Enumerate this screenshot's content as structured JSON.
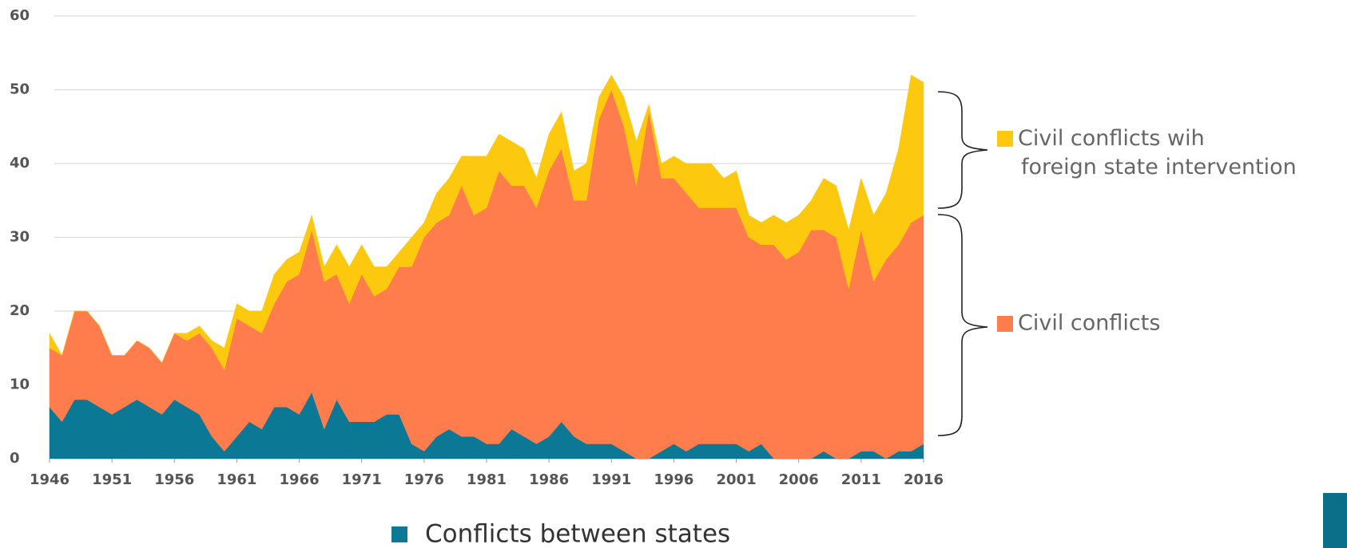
{
  "chart_data": {
    "type": "stacked-area",
    "x": [
      1946,
      1947,
      1948,
      1949,
      1950,
      1951,
      1952,
      1953,
      1954,
      1955,
      1956,
      1957,
      1958,
      1959,
      1960,
      1961,
      1962,
      1963,
      1964,
      1965,
      1966,
      1967,
      1968,
      1969,
      1970,
      1971,
      1972,
      1973,
      1974,
      1975,
      1976,
      1977,
      1978,
      1979,
      1980,
      1981,
      1982,
      1983,
      1984,
      1985,
      1986,
      1987,
      1988,
      1989,
      1990,
      1991,
      1992,
      1993,
      1994,
      1995,
      1996,
      1997,
      1998,
      1999,
      2000,
      2001,
      2002,
      2003,
      2004,
      2005,
      2006,
      2007,
      2008,
      2009,
      2010,
      2011,
      2012,
      2013,
      2014,
      2015,
      2016
    ],
    "series": [
      {
        "name": "Conflicts between states",
        "color": "#0b7895",
        "values": [
          7,
          5,
          8,
          8,
          7,
          6,
          7,
          8,
          7,
          6,
          8,
          7,
          6,
          3,
          1,
          3,
          5,
          4,
          7,
          7,
          6,
          9,
          4,
          8,
          5,
          5,
          5,
          6,
          6,
          2,
          1,
          3,
          4,
          3,
          3,
          2,
          2,
          4,
          3,
          2,
          3,
          5,
          3,
          2,
          2,
          2,
          1,
          0,
          0,
          1,
          2,
          1,
          2,
          2,
          2,
          2,
          1,
          2,
          0,
          0,
          0,
          0,
          1,
          0,
          0,
          1,
          1,
          0,
          1,
          1,
          2
        ]
      },
      {
        "name": "Civil conflicts",
        "color": "#ff7c4c",
        "values": [
          8,
          9,
          12,
          12,
          11,
          8,
          7,
          8,
          8,
          7,
          9,
          9,
          11,
          12,
          11,
          16,
          13,
          13,
          14,
          17,
          19,
          22,
          20,
          17,
          16,
          20,
          17,
          17,
          20,
          24,
          29,
          29,
          29,
          34,
          30,
          32,
          37,
          33,
          34,
          32,
          36,
          37,
          32,
          33,
          44,
          48,
          44,
          37,
          47,
          37,
          36,
          35,
          32,
          32,
          32,
          32,
          29,
          27,
          29,
          27,
          28,
          31,
          30,
          30,
          23,
          30,
          23,
          27,
          28,
          31,
          31
        ]
      },
      {
        "name": "Civil conflicts wih foreign state intervention",
        "color": "#fdc90e",
        "values": [
          2,
          0,
          0,
          0,
          0,
          0,
          0,
          0,
          0,
          0,
          0,
          1,
          1,
          1,
          3,
          2,
          2,
          3,
          4,
          3,
          3,
          2,
          2,
          4,
          5,
          4,
          4,
          3,
          2,
          4,
          2,
          4,
          5,
          4,
          8,
          7,
          5,
          6,
          5,
          4,
          5,
          5,
          4,
          5,
          3,
          2,
          4,
          6,
          1,
          2,
          3,
          4,
          6,
          6,
          4,
          5,
          3,
          3,
          4,
          5,
          5,
          4,
          7,
          7,
          8,
          7,
          9,
          9,
          13,
          20,
          18
        ]
      }
    ],
    "xlim": [
      1946,
      2016
    ],
    "xticks": [
      1946,
      1951,
      1956,
      1961,
      1966,
      1971,
      1976,
      1981,
      1986,
      1991,
      1996,
      2001,
      2006,
      2011,
      2016
    ],
    "ylim": [
      0,
      60
    ],
    "yticks": [
      0,
      10,
      20,
      30,
      40,
      50,
      60
    ],
    "grid": true
  }
}
